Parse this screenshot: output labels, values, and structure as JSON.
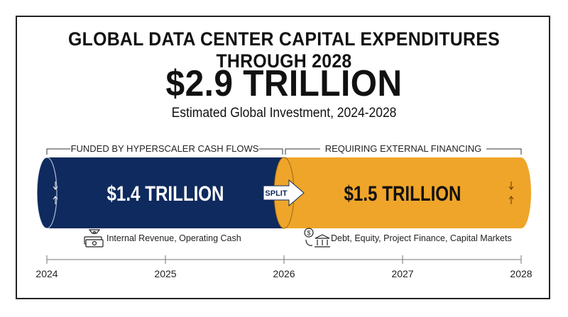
{
  "title": "GLOBAL DATA CENTER CAPITAL EXPENDITURES THROUGH 2028",
  "total": "$2.9 TRILLION",
  "subtitle": "Estimated Global Investment, 2024-2028",
  "transition_label": "SPLIT",
  "colors": {
    "navy": "#0e2a5e",
    "gold": "#efa529",
    "navy_text": "#ffffff",
    "gold_text": "#111111"
  },
  "chart_data": {
    "type": "bar",
    "orientation": "horizontal-stacked-timeline",
    "axis": {
      "ticks": [
        "2024",
        "2025",
        "2026",
        "2027",
        "2028"
      ],
      "range": [
        2024,
        2028
      ]
    },
    "segments": [
      {
        "start": 2024,
        "end": 2026,
        "value": 1.4,
        "value_label": "$1.4 TRILLION",
        "bracket_label": "FUNDED BY HYPERSCALER CASH FLOWS",
        "note": "Internal Revenue, Operating Cash",
        "icon": "money-stack-icon",
        "color": "#0e2a5e"
      },
      {
        "start": 2026,
        "end": 2028,
        "value": 1.5,
        "value_label": "$1.5 TRILLION",
        "bracket_label": "REQUIRING EXTERNAL FINANCING",
        "note": "Debt, Equity, Project Finance, Capital Markets",
        "icon": "bank-dollar-icon",
        "color": "#efa529"
      }
    ]
  }
}
